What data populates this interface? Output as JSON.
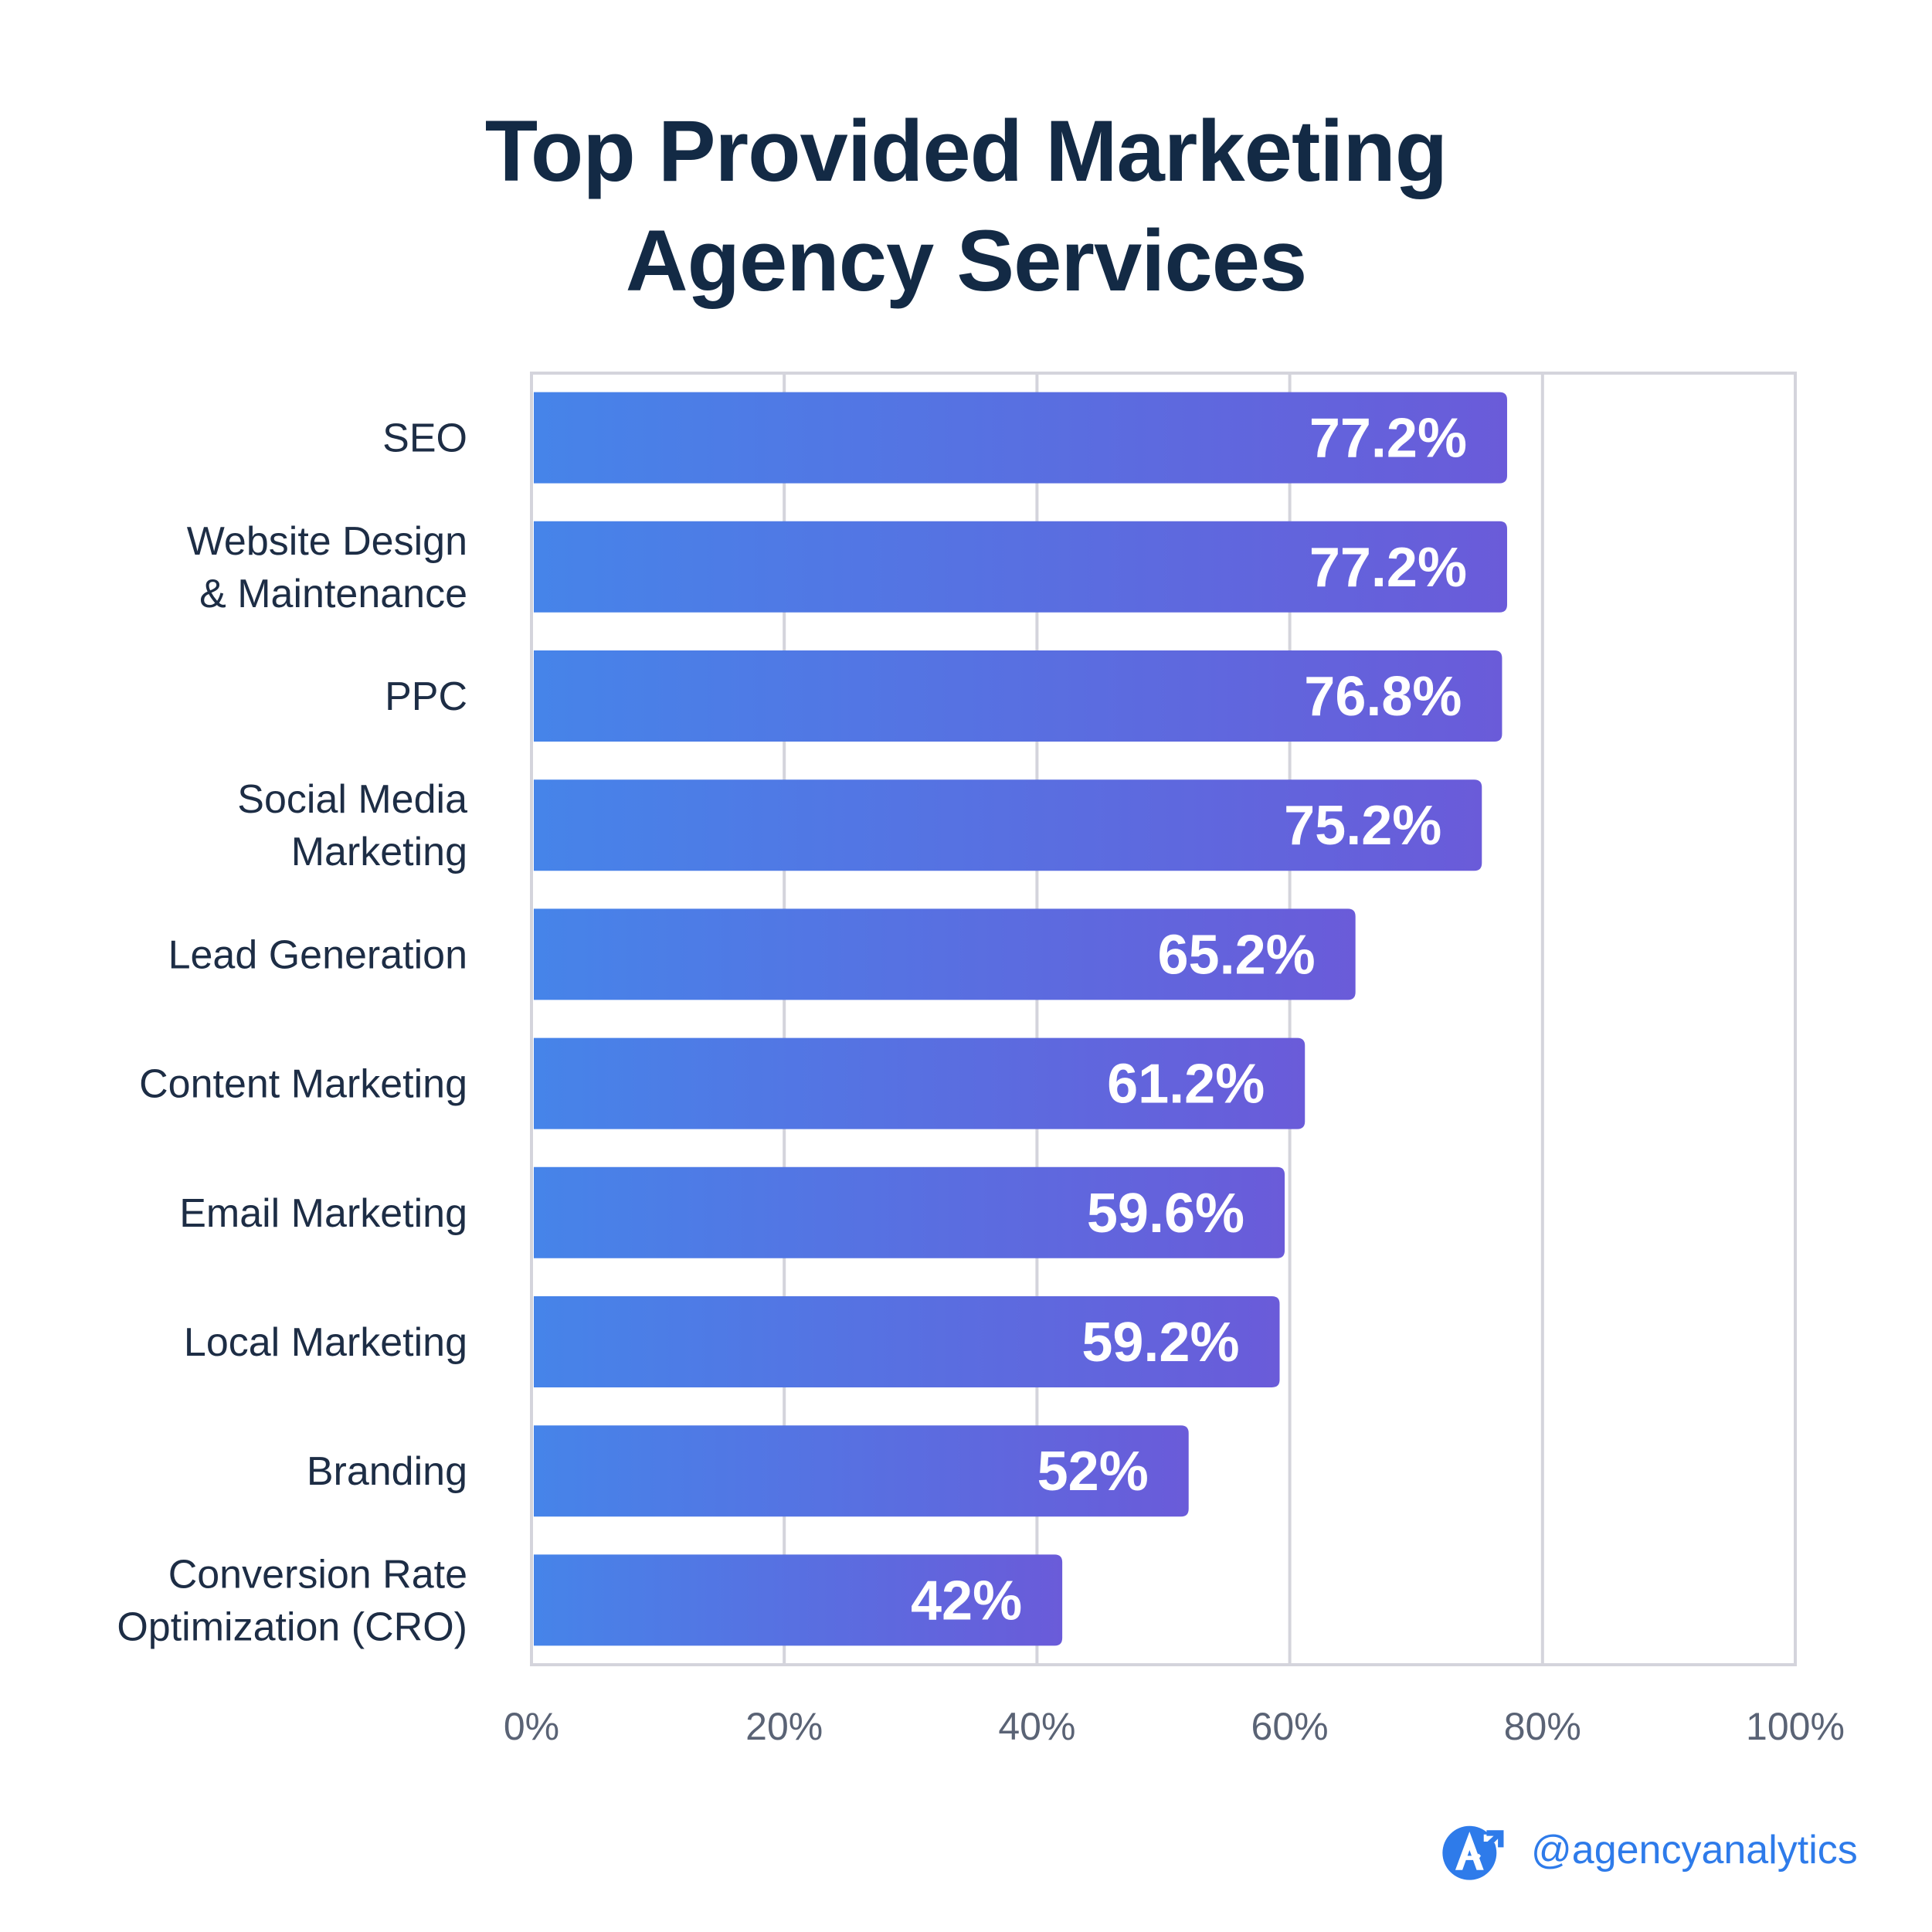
{
  "chart_data": {
    "type": "bar",
    "orientation": "horizontal",
    "title": [
      "Top Provided Marketing",
      "Agency Services"
    ],
    "categories": [
      [
        "SEO"
      ],
      [
        "Website Design",
        "& Maintenance"
      ],
      [
        "PPC"
      ],
      [
        "Social Media",
        "Marketing"
      ],
      [
        "Lead Generation"
      ],
      [
        "Content Marketing"
      ],
      [
        "Email Marketing"
      ],
      [
        "Local Marketing"
      ],
      [
        "Branding"
      ],
      [
        "Conversion Rate",
        "Optimization (CRO)"
      ]
    ],
    "values": [
      77.2,
      77.2,
      76.8,
      75.2,
      65.2,
      61.2,
      59.6,
      59.2,
      52,
      42
    ],
    "value_labels": [
      "77.2%",
      "77.2%",
      "76.8%",
      "75.2%",
      "65.2%",
      "61.2%",
      "59.6%",
      "59.2%",
      "52%",
      "42%"
    ],
    "xlim": [
      0,
      100
    ],
    "x_ticks": [
      "0%",
      "20%",
      "40%",
      "60%",
      "80%",
      "100%"
    ],
    "grid": true,
    "bar_gradient": [
      "#4684e9",
      "#6a5bd9"
    ]
  },
  "watermark": {
    "handle": "@agencyanalytics",
    "icon": "agencyanalytics-logo-icon"
  },
  "colors": {
    "title": "#132a45",
    "label": "#1d2d45",
    "tick": "#5a6375",
    "grid": "#d4d4dc",
    "brand": "#2e7bea"
  }
}
